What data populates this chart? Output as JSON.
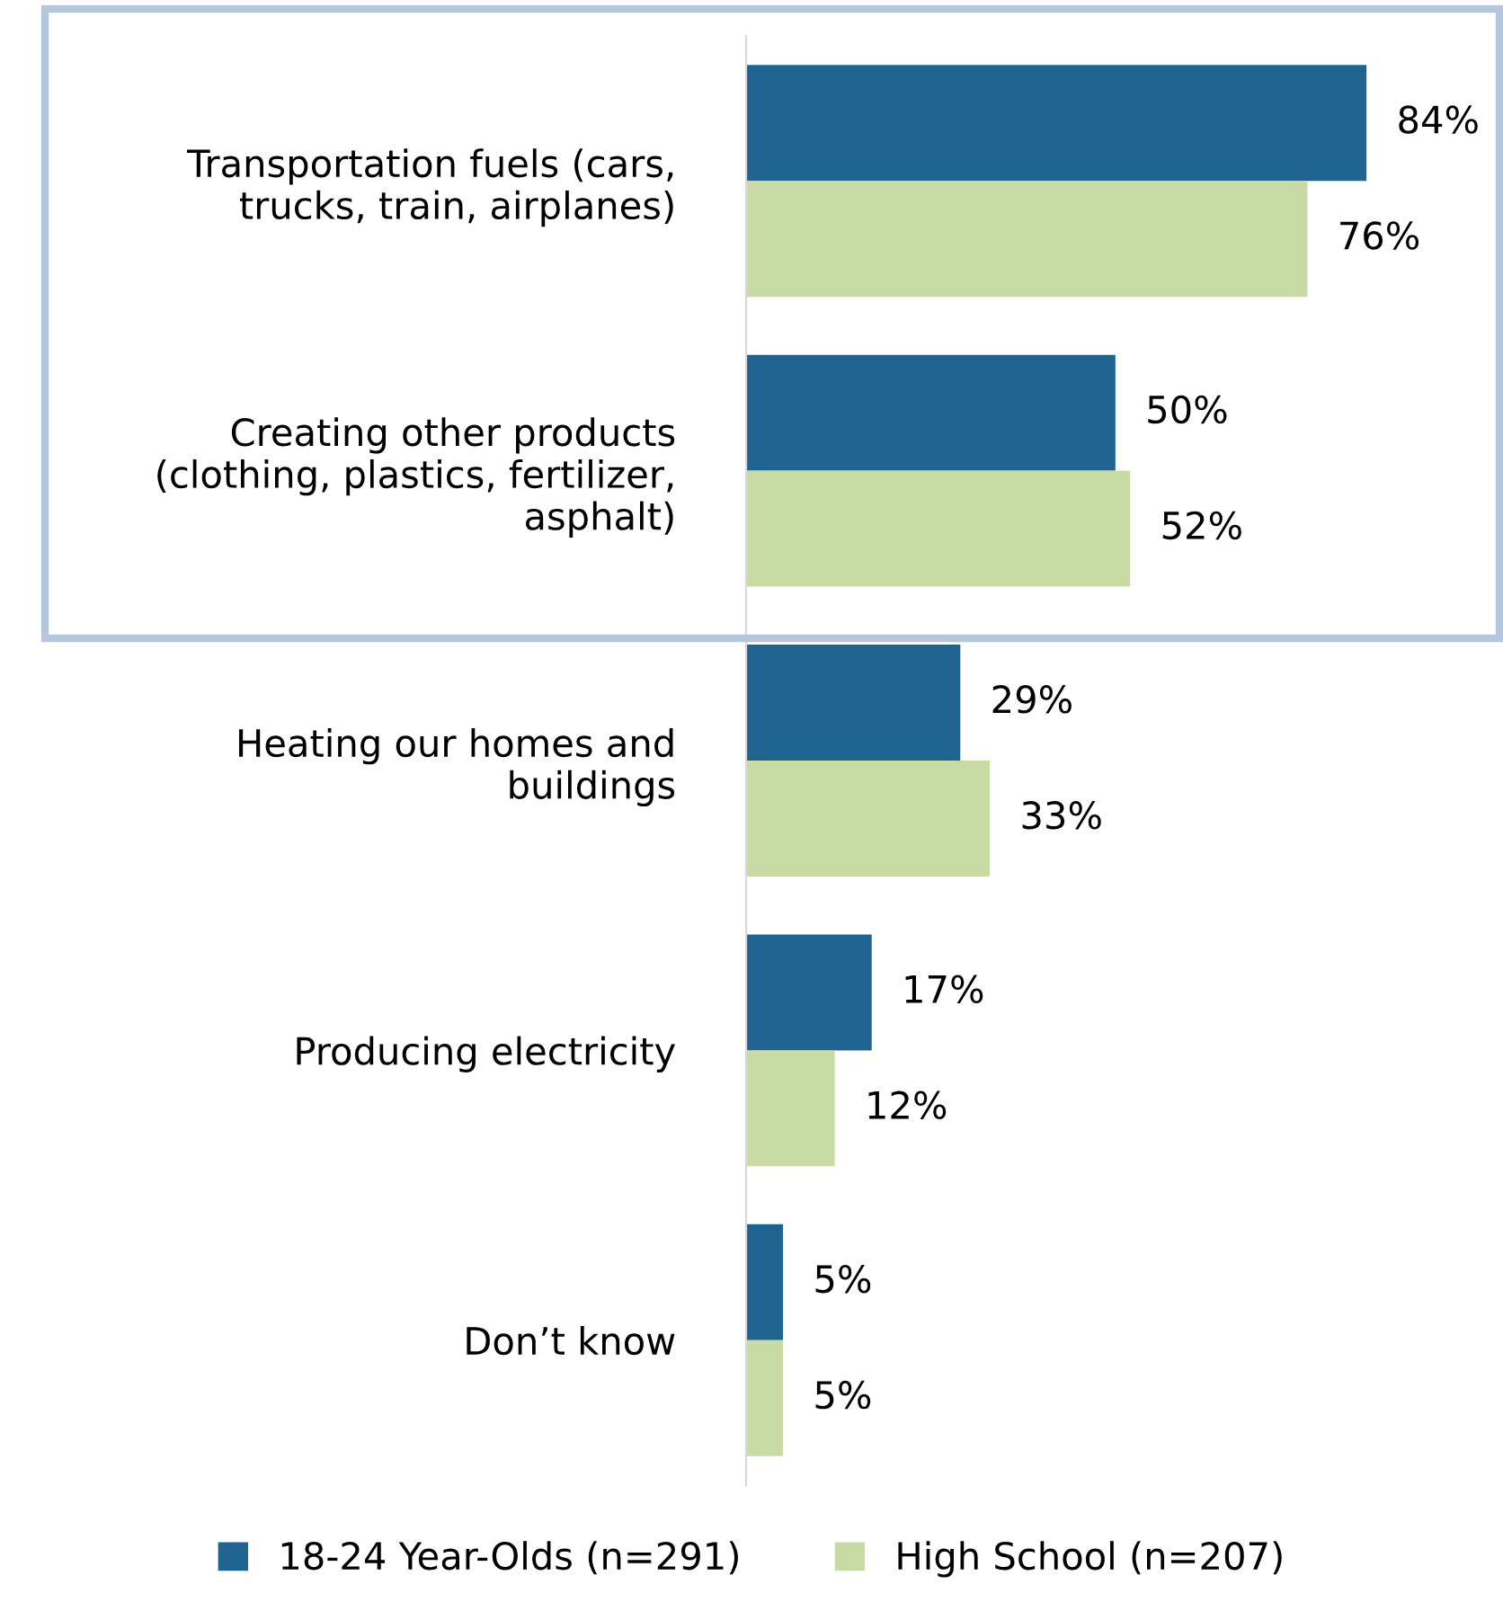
{
  "chart_data": {
    "type": "bar",
    "orientation": "horizontal",
    "categories": [
      "Transportation fuels (cars,\ntrucks, train, airplanes)",
      "Creating other products\n(clothing, plastics, fertilizer,\nasphalt)",
      "Heating our homes and\nbuildings",
      "Producing electricity",
      "Don’t know"
    ],
    "series": [
      {
        "name": "18-24 Year-Olds (n=291)",
        "color": "#1f6391",
        "values": [
          84,
          50,
          29,
          17,
          5
        ],
        "value_labels": [
          "84%",
          "50%",
          "29%",
          "17%",
          "5%"
        ]
      },
      {
        "name": "High School (n=207)",
        "color": "#c9dba4",
        "values": [
          76,
          52,
          33,
          12,
          5
        ],
        "value_labels": [
          "76%",
          "52%",
          "33%",
          "12%",
          "5%"
        ]
      }
    ],
    "legend": "bottom",
    "grid": false
  }
}
